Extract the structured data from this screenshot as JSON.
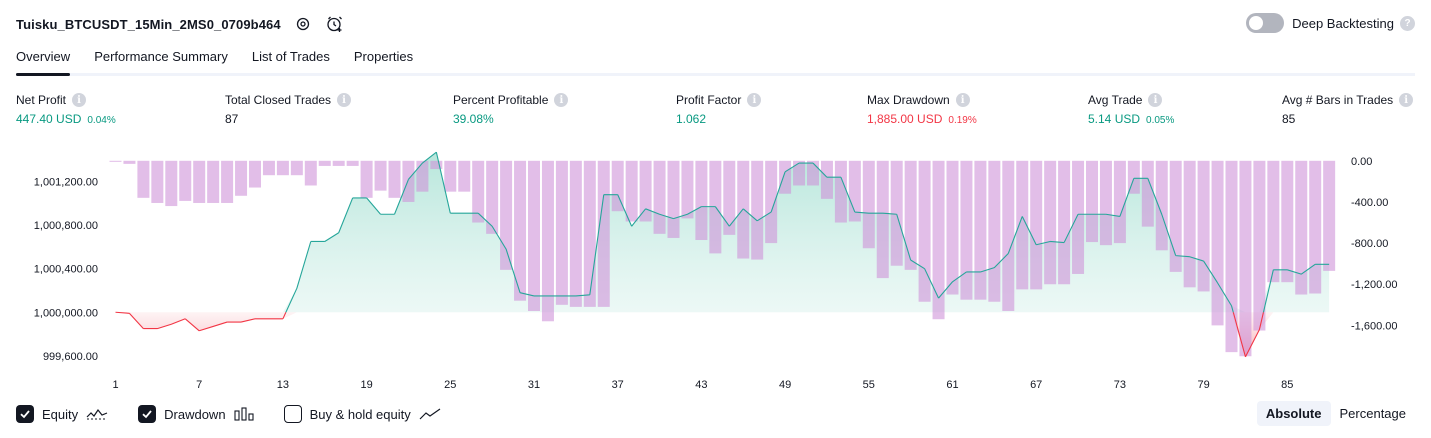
{
  "header": {
    "title": "Tuisku_BTCUSDT_15Min_2MS0_0709b464",
    "deep_backtesting_label": "Deep Backtesting",
    "deep_backtesting_on": false
  },
  "tabs": [
    {
      "label": "Overview",
      "active": true
    },
    {
      "label": "Performance Summary",
      "active": false
    },
    {
      "label": "List of Trades",
      "active": false
    },
    {
      "label": "Properties",
      "active": false
    }
  ],
  "stats": {
    "net_profit": {
      "label": "Net Profit",
      "value": "447.40 USD",
      "pct": "0.04%"
    },
    "total_closed_trades": {
      "label": "Total Closed Trades",
      "value": "87"
    },
    "percent_profitable": {
      "label": "Percent Profitable",
      "value": "39.08%"
    },
    "profit_factor": {
      "label": "Profit Factor",
      "value": "1.062"
    },
    "max_drawdown": {
      "label": "Max Drawdown",
      "value": "1,885.00 USD",
      "pct": "0.19%"
    },
    "avg_trade": {
      "label": "Avg Trade",
      "value": "5.14 USD",
      "pct": "0.05%"
    },
    "avg_bars": {
      "label": "Avg # Bars in Trades",
      "value": "85"
    }
  },
  "legend": {
    "equity": {
      "label": "Equity",
      "checked": true
    },
    "drawdown": {
      "label": "Drawdown",
      "checked": true
    },
    "buy_hold": {
      "label": "Buy & hold equity",
      "checked": false
    }
  },
  "mode": {
    "absolute": "Absolute",
    "percentage": "Percentage",
    "selected": "Absolute"
  },
  "colors": {
    "equity_line_positive": "#26a69a",
    "equity_line_negative": "#f23645",
    "equity_fill_positive": "#d5f0ea",
    "equity_fill_negative": "#fbd7da",
    "drawdown_bar": "#ce93d8",
    "profit_text": "#089981",
    "loss_text": "#f23645"
  },
  "chart_data": {
    "type": "area",
    "x_ticks": [
      "1",
      "7",
      "13",
      "19",
      "25",
      "31",
      "37",
      "43",
      "49",
      "55",
      "61",
      "67",
      "73",
      "79",
      "85"
    ],
    "left_axis": {
      "ticks": [
        "1,001,200.00",
        "1,000,800.00",
        "1,000,400.00",
        "1,000,000.00",
        "999,600.00"
      ],
      "tick_values": [
        1001200,
        1000800,
        1000400,
        1000000,
        999600
      ],
      "range": [
        999580,
        1001490
      ]
    },
    "right_axis": {
      "ticks": [
        "0.00",
        "-400.00",
        "-800.00",
        "-1,200.00",
        "-1,600.00"
      ],
      "tick_values": [
        0,
        -400,
        -800,
        -1200,
        -1600
      ],
      "range": [
        -1917,
        105
      ]
    },
    "series": [
      {
        "name": "Equity",
        "x": [
          1,
          2,
          3,
          4,
          5,
          6,
          7,
          8,
          9,
          10,
          11,
          12,
          13,
          14,
          15,
          16,
          17,
          18,
          19,
          20,
          21,
          22,
          23,
          24,
          25,
          26,
          27,
          28,
          29,
          30,
          31,
          32,
          33,
          34,
          35,
          36,
          37,
          38,
          39,
          40,
          41,
          42,
          43,
          44,
          45,
          46,
          47,
          48,
          49,
          50,
          51,
          52,
          53,
          54,
          55,
          56,
          57,
          58,
          59,
          60,
          61,
          62,
          63,
          64,
          65,
          66,
          67,
          68,
          69,
          70,
          71,
          72,
          73,
          74,
          75,
          76,
          77,
          78,
          79,
          80,
          81,
          82,
          83,
          84,
          85,
          86,
          87,
          88
        ],
        "values": [
          1000000,
          999990,
          999850,
          999850,
          999890,
          999940,
          999830,
          999870,
          999910,
          999910,
          999940,
          999940,
          999940,
          1000220,
          1000650,
          1000650,
          1000730,
          1001050,
          1001050,
          1000900,
          1000900,
          1001220,
          1001370,
          1001470,
          1000910,
          1000910,
          1000910,
          1000790,
          1000580,
          1000180,
          1000150,
          1000150,
          1000150,
          1000150,
          1000160,
          1001080,
          1001080,
          1000790,
          1000950,
          1000900,
          1000860,
          1000900,
          1000970,
          1000970,
          1000790,
          1000950,
          1000840,
          1000920,
          1001290,
          1001370,
          1001370,
          1001240,
          1001240,
          1000920,
          1000910,
          1000910,
          1000900,
          1000480,
          1000400,
          1000130,
          1000280,
          1000370,
          1000370,
          1000410,
          1000540,
          1000880,
          1000620,
          1000650,
          1000640,
          1000900,
          1000900,
          1000900,
          1000880,
          1001230,
          1001230,
          1000900,
          1000520,
          1000510,
          1000470,
          1000270,
          1000060,
          999590,
          999840,
          1000390,
          1000390,
          1000350,
          1000440,
          1000440
        ]
      },
      {
        "name": "Drawdown",
        "x": [
          1,
          2,
          3,
          4,
          5,
          6,
          7,
          8,
          9,
          10,
          11,
          12,
          13,
          14,
          15,
          16,
          17,
          18,
          19,
          20,
          21,
          22,
          23,
          24,
          25,
          26,
          27,
          28,
          29,
          30,
          31,
          32,
          33,
          34,
          35,
          36,
          37,
          38,
          39,
          40,
          41,
          42,
          43,
          44,
          45,
          46,
          47,
          48,
          49,
          50,
          51,
          52,
          53,
          54,
          55,
          56,
          57,
          58,
          59,
          60,
          61,
          62,
          63,
          64,
          65,
          66,
          67,
          68,
          69,
          70,
          71,
          72,
          73,
          74,
          75,
          76,
          77,
          78,
          79,
          80,
          81,
          82,
          83,
          84,
          85,
          86,
          87,
          88
        ],
        "values": [
          -10,
          -30,
          -360,
          -410,
          -440,
          -390,
          -410,
          -410,
          -410,
          -340,
          -260,
          -140,
          -140,
          -140,
          -240,
          -50,
          -50,
          -50,
          -360,
          -290,
          -360,
          -400,
          -300,
          -80,
          -300,
          -300,
          -600,
          -710,
          -1060,
          -1360,
          -1460,
          -1560,
          -1400,
          -1420,
          -1420,
          -1420,
          -490,
          -590,
          -590,
          -710,
          -750,
          -560,
          -770,
          -900,
          -720,
          -950,
          -960,
          -800,
          -320,
          -240,
          -240,
          -370,
          -600,
          -590,
          -850,
          -1140,
          -1020,
          -1060,
          -1370,
          -1540,
          -1300,
          -1350,
          -1350,
          -1370,
          -1460,
          -1250,
          -1250,
          -1200,
          -1200,
          -1100,
          -790,
          -820,
          -800,
          -320,
          -640,
          -870,
          -1080,
          -1230,
          -1270,
          -1600,
          -1860,
          -1900,
          -1650,
          -1180,
          -1180,
          -1300,
          -1290,
          -1070
        ]
      }
    ]
  }
}
